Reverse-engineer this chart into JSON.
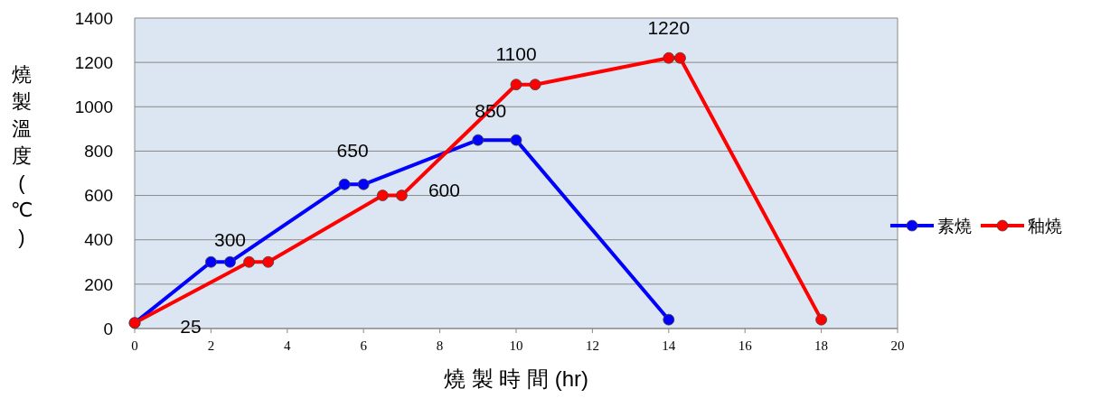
{
  "chart_data": {
    "type": "line",
    "xlabel": "燒 製 時 間 (hr)",
    "ylabel": "燒製溫度(℃)",
    "xlim": [
      0,
      20
    ],
    "xticks": [
      0,
      2,
      4,
      6,
      8,
      10,
      12,
      14,
      16,
      18,
      20
    ],
    "ylim": [
      0,
      1400
    ],
    "yticks": [
      0,
      200,
      400,
      600,
      800,
      1000,
      1200,
      1400
    ],
    "grid": "y",
    "legend": "right",
    "marker": "circle",
    "line_style": "solid",
    "series": [
      {
        "name": "素燒",
        "color": "#0000ff",
        "x": [
          0,
          2,
          2.5,
          5.5,
          6,
          9,
          10,
          14
        ],
        "values": [
          25,
          300,
          300,
          650,
          650,
          850,
          850,
          40
        ]
      },
      {
        "name": "釉燒",
        "color": "#ff0000",
        "x": [
          0,
          3,
          3.5,
          6.5,
          7,
          10,
          10.5,
          14,
          14.3,
          18
        ],
        "values": [
          25,
          300,
          300,
          600,
          600,
          1100,
          1100,
          1220,
          1220,
          40
        ]
      }
    ],
    "annotations": [
      {
        "text": "25",
        "x": 0,
        "y": 25
      },
      {
        "text": "300",
        "x": 2.5,
        "y": 300
      },
      {
        "text": "650",
        "x": 5.5,
        "y": 650
      },
      {
        "text": "850",
        "x": 9,
        "y": 850
      },
      {
        "text": "1100",
        "x": 10,
        "y": 1100
      },
      {
        "text": "1220",
        "x": 14,
        "y": 1220
      },
      {
        "text": "600",
        "x": 7,
        "y": 600
      }
    ]
  }
}
